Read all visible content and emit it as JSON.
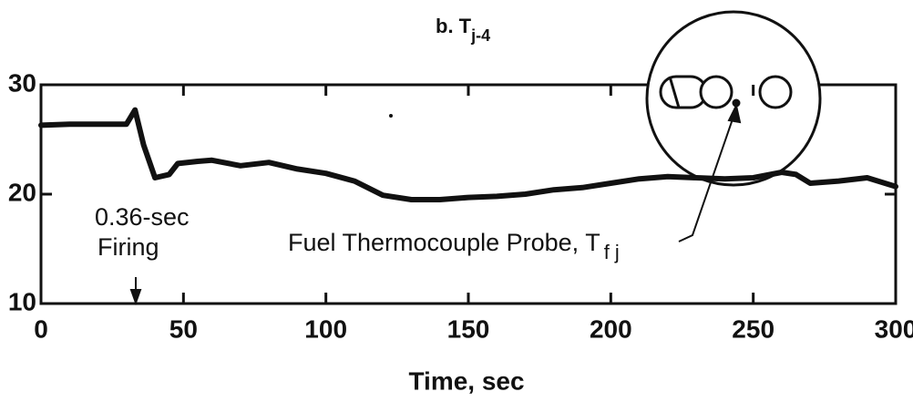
{
  "chart_data": {
    "type": "line",
    "title": "b. T",
    "title_subscript": "j-4",
    "xlabel": "Time, sec",
    "x": [
      0,
      10,
      20,
      30,
      33,
      36,
      40,
      45,
      48,
      55,
      60,
      70,
      80,
      90,
      100,
      110,
      120,
      130,
      140,
      150,
      160,
      170,
      180,
      190,
      200,
      210,
      220,
      230,
      240,
      250,
      260,
      265,
      270,
      280,
      290,
      300
    ],
    "values": [
      26.3,
      26.4,
      26.4,
      26.4,
      27.7,
      24.5,
      21.5,
      21.8,
      22.8,
      23.0,
      23.1,
      22.6,
      22.9,
      22.3,
      21.9,
      21.2,
      19.9,
      19.5,
      19.5,
      19.7,
      19.8,
      20.0,
      20.4,
      20.6,
      21.0,
      21.4,
      21.6,
      21.5,
      21.4,
      21.5,
      22.0,
      21.8,
      21.0,
      21.2,
      21.5,
      20.7
    ],
    "color": "#111111",
    "xlim": [
      0,
      300
    ],
    "xticks": [
      0,
      50,
      100,
      150,
      200,
      250,
      300
    ],
    "ylim": [
      10,
      30
    ],
    "yticks": [
      10,
      20,
      30
    ],
    "annotations": {
      "firing_line1": "0.36-sec",
      "firing_line2": "Firing",
      "probe": "Fuel Thermocouple Probe, T",
      "probe_subscript": "f j"
    }
  }
}
